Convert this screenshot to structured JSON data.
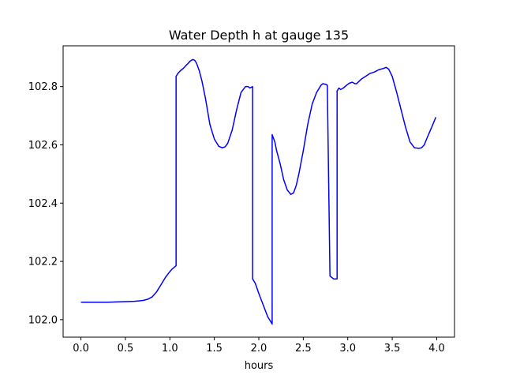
{
  "chart_data": {
    "type": "line",
    "title": "Water Depth h at gauge 135",
    "xlabel": "hours",
    "ylabel": "",
    "xlim": [
      -0.2,
      4.2
    ],
    "ylim": [
      101.94,
      102.94
    ],
    "xticks": [
      0.0,
      0.5,
      1.0,
      1.5,
      2.0,
      2.5,
      3.0,
      3.5,
      4.0
    ],
    "xtick_labels": [
      "0.0",
      "0.5",
      "1.0",
      "1.5",
      "2.0",
      "2.5",
      "3.0",
      "3.5",
      "4.0"
    ],
    "yticks": [
      102.0,
      102.2,
      102.4,
      102.6,
      102.8
    ],
    "ytick_labels": [
      "102.0",
      "102.2",
      "102.4",
      "102.6",
      "102.8"
    ],
    "grid": false,
    "series": [
      {
        "color": "#0000ff",
        "x": [
          0.0,
          0.3,
          0.5,
          0.6,
          0.7,
          0.75,
          0.8,
          0.85,
          0.9,
          0.95,
          1.0,
          1.03,
          1.07,
          1.07,
          1.09,
          1.12,
          1.15,
          1.18,
          1.2,
          1.23,
          1.26,
          1.28,
          1.3,
          1.33,
          1.36,
          1.4,
          1.45,
          1.5,
          1.55,
          1.59,
          1.62,
          1.65,
          1.7,
          1.75,
          1.8,
          1.85,
          1.88,
          1.9,
          1.93,
          1.93,
          1.96,
          2.0,
          2.05,
          2.1,
          2.15,
          2.15,
          2.18,
          2.2,
          2.24,
          2.28,
          2.32,
          2.36,
          2.39,
          2.42,
          2.45,
          2.5,
          2.55,
          2.6,
          2.65,
          2.7,
          2.72,
          2.75,
          2.77,
          2.8,
          2.8,
          2.84,
          2.88,
          2.88,
          2.9,
          2.92,
          2.95,
          3.0,
          3.02,
          3.05,
          3.08,
          3.1,
          3.15,
          3.2,
          3.25,
          3.3,
          3.35,
          3.4,
          3.43,
          3.46,
          3.5,
          3.55,
          3.6,
          3.65,
          3.7,
          3.75,
          3.8,
          3.83,
          3.86,
          3.9,
          3.95,
          3.99
        ],
        "values": [
          102.06,
          102.06,
          102.062,
          102.063,
          102.066,
          102.07,
          102.078,
          102.095,
          102.12,
          102.145,
          102.165,
          102.175,
          102.185,
          102.835,
          102.845,
          102.855,
          102.862,
          102.872,
          102.878,
          102.888,
          102.893,
          102.89,
          102.88,
          102.855,
          102.82,
          102.76,
          102.67,
          102.62,
          102.595,
          102.59,
          102.593,
          102.605,
          102.65,
          102.72,
          102.78,
          102.8,
          102.8,
          102.795,
          102.8,
          102.14,
          102.125,
          102.09,
          102.05,
          102.01,
          101.985,
          102.635,
          102.61,
          102.58,
          102.535,
          102.48,
          102.445,
          102.43,
          102.435,
          102.46,
          102.5,
          102.58,
          102.67,
          102.74,
          102.78,
          102.805,
          102.81,
          102.808,
          102.805,
          102.15,
          102.15,
          102.14,
          102.14,
          102.785,
          102.795,
          102.79,
          102.795,
          102.808,
          102.812,
          102.815,
          102.81,
          102.81,
          102.825,
          102.835,
          102.845,
          102.85,
          102.858,
          102.862,
          102.866,
          102.86,
          102.835,
          102.78,
          102.72,
          102.66,
          102.61,
          102.59,
          102.588,
          102.59,
          102.6,
          102.63,
          102.665,
          102.695
        ]
      }
    ]
  }
}
